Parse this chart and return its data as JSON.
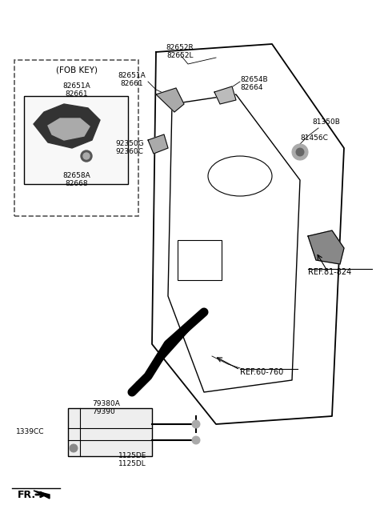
{
  "bg_color": "#ffffff",
  "line_color": "#000000",
  "gray_color": "#888888",
  "labels": {
    "fob_key_title": "(FOB KEY)",
    "L82651A_82661_top": "82651A\n82661",
    "L82658A_82668": "82658A\n82668",
    "L82652R_82652L": "82652R\n82652L",
    "L82651A_82661_main": "82651A\n82661",
    "L82654B_82664": "82654B\n82664",
    "L92350G_92360C": "92350G\n92360C",
    "L81350B": "81350B",
    "L81456C": "81456C",
    "LREF81824": "REF.81-824",
    "LREF60760": "REF.60-760",
    "L79380A_79390": "79380A\n79390",
    "L1339CC": "1339CC",
    "L1125DE_1125DL": "1125DE\n1125DL",
    "FR": "FR."
  }
}
